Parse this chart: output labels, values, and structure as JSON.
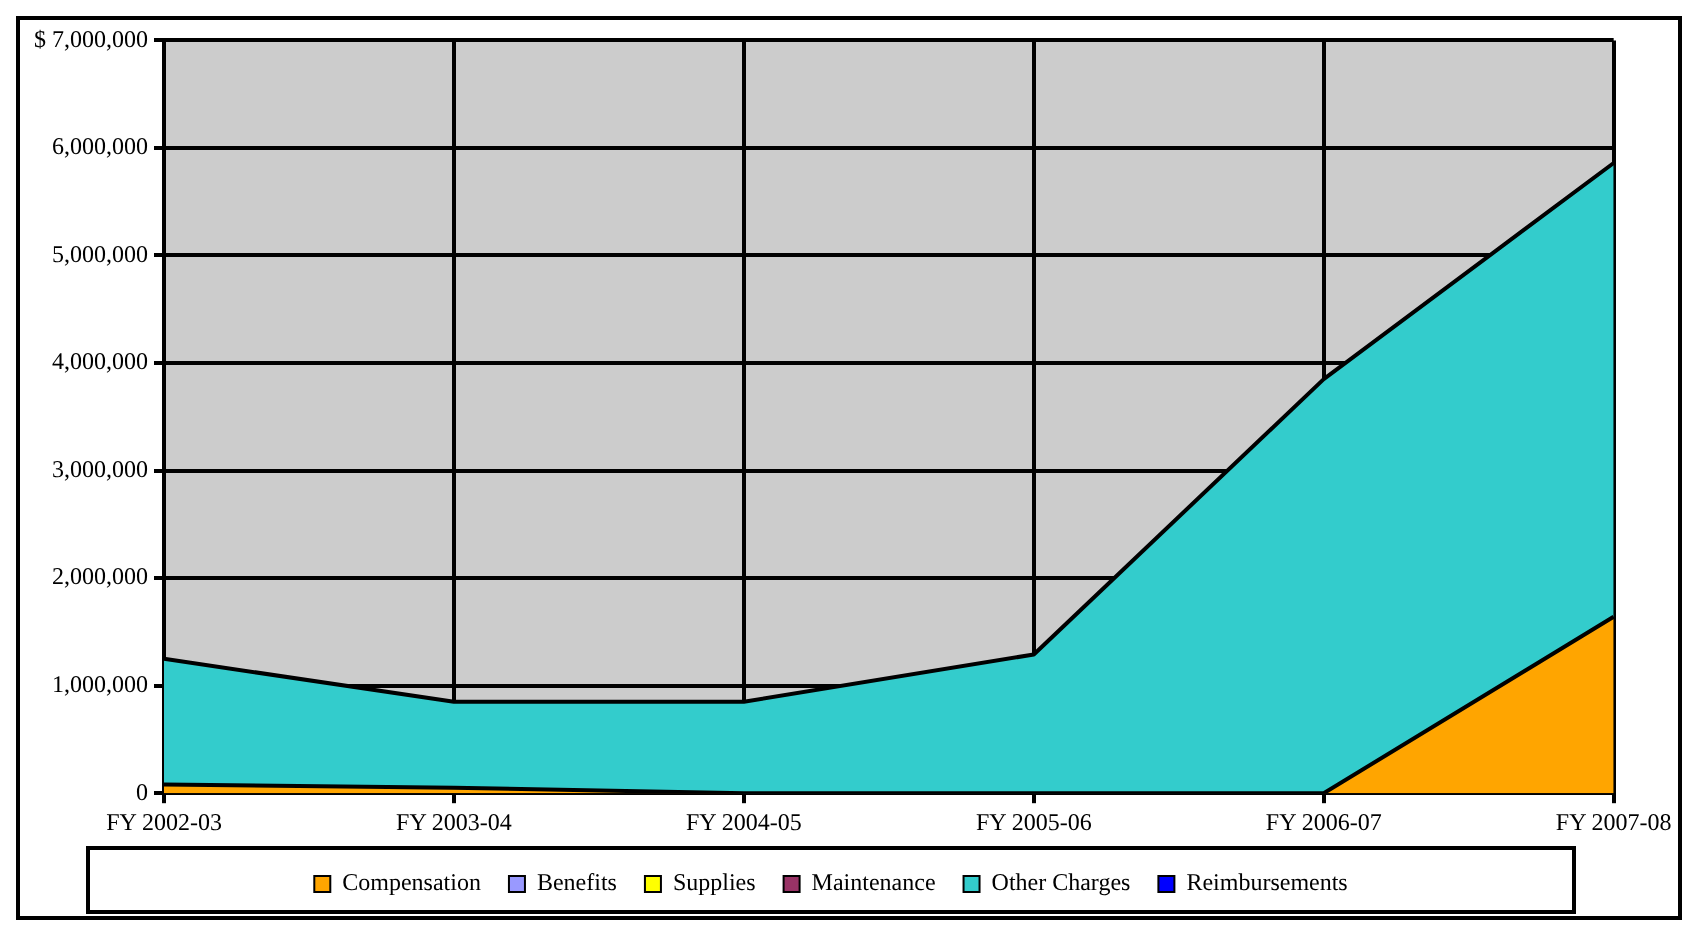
{
  "chart_data": {
    "type": "area",
    "stacked": true,
    "categories": [
      "FY 2002-03",
      "FY 2003-04",
      "FY 2004-05",
      "FY 2005-06",
      "FY 2006-07",
      "FY 2007-08"
    ],
    "series": [
      {
        "name": "Compensation",
        "color": "#ffa500",
        "values": [
          80000,
          50000,
          0,
          0,
          0,
          1640000
        ]
      },
      {
        "name": "Benefits",
        "color": "#9999ff",
        "values": [
          null,
          null,
          null,
          null,
          null,
          null
        ]
      },
      {
        "name": "Supplies",
        "color": "#ffff00",
        "values": [
          null,
          null,
          null,
          null,
          null,
          null
        ]
      },
      {
        "name": "Maintenance",
        "color": "#993366",
        "values": [
          null,
          null,
          null,
          null,
          null,
          null
        ]
      },
      {
        "name": "Other Charges",
        "color": "#33cccc",
        "values": [
          1170000,
          800000,
          850000,
          1290000,
          3850000,
          4220000
        ]
      },
      {
        "name": "Reimbursements",
        "color": "#0000ff",
        "values": [
          null,
          null,
          null,
          null,
          null,
          null
        ]
      }
    ],
    "ylim": [
      0,
      7000000
    ],
    "yticks": [
      0,
      {
        "value": 1000000,
        "label": "1,000,000"
      },
      {
        "value": 2000000,
        "label": "2,000,000"
      },
      {
        "value": 3000000,
        "label": "3,000,000"
      },
      {
        "value": 4000000,
        "label": "4,000,000"
      },
      {
        "value": 5000000,
        "label": "5,000,000"
      },
      {
        "value": 6000000,
        "label": "6,000,000"
      },
      {
        "value": 7000000,
        "label": "$ 7,000,000"
      }
    ],
    "grid": true,
    "legend": "bottom"
  }
}
